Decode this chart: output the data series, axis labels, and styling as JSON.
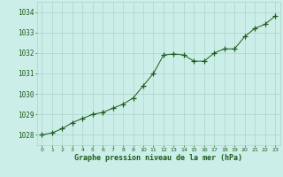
{
  "x": [
    0,
    1,
    2,
    3,
    4,
    5,
    6,
    7,
    8,
    9,
    10,
    11,
    12,
    13,
    14,
    15,
    16,
    17,
    18,
    19,
    20,
    21,
    22,
    23
  ],
  "y": [
    1028.0,
    1028.1,
    1028.3,
    1028.6,
    1028.8,
    1029.0,
    1029.1,
    1029.3,
    1029.5,
    1029.8,
    1030.4,
    1031.0,
    1031.9,
    1031.95,
    1031.9,
    1031.6,
    1031.6,
    1032.0,
    1032.2,
    1032.2,
    1032.8,
    1033.2,
    1033.4,
    1033.8
  ],
  "line_color": "#1a5c1a",
  "marker": "+",
  "marker_size": 4,
  "marker_color": "#1a5c1a",
  "bg_color": "#cceee8",
  "grid_color": "#aad4cc",
  "xlabel": "Graphe pression niveau de la mer (hPa)",
  "xlabel_color": "#1a5c1a",
  "tick_color": "#1a5c1a",
  "ylim": [
    1027.5,
    1034.5
  ],
  "yticks": [
    1028,
    1029,
    1030,
    1031,
    1032,
    1033,
    1034
  ],
  "xticks": [
    0,
    1,
    2,
    3,
    4,
    5,
    6,
    7,
    8,
    9,
    10,
    11,
    12,
    13,
    14,
    15,
    16,
    17,
    18,
    19,
    20,
    21,
    22,
    23
  ],
  "xtick_labels": [
    "0",
    "1",
    "2",
    "3",
    "4",
    "5",
    "6",
    "7",
    "8",
    "9",
    "10",
    "11",
    "12",
    "13",
    "14",
    "15",
    "16",
    "17",
    "18",
    "19",
    "20",
    "21",
    "22",
    "23"
  ],
  "ytick_fontsize": 5.5,
  "xtick_fontsize": 4.5,
  "xlabel_fontsize": 6.0
}
